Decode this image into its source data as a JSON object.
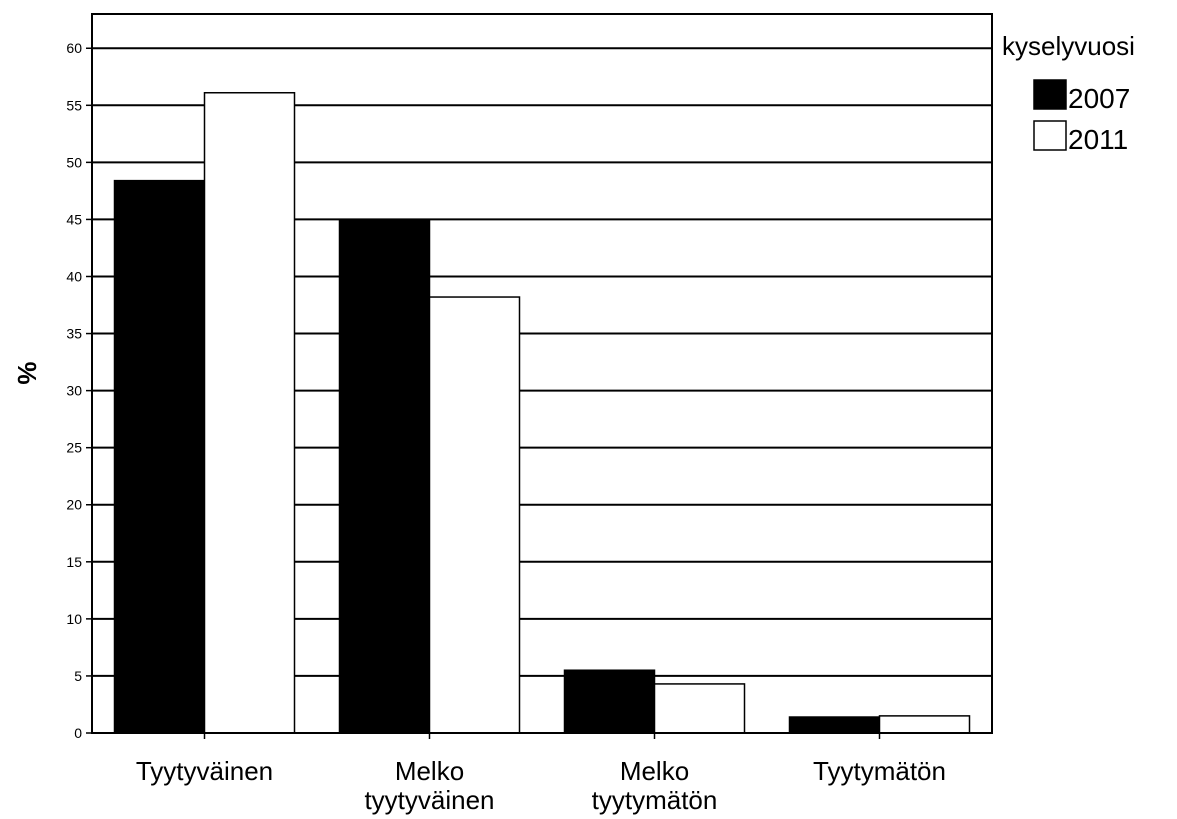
{
  "chart_data": {
    "type": "bar",
    "ylabel": "%",
    "xlabel": "",
    "ylim": [
      0,
      63
    ],
    "yticks": [
      0,
      5,
      10,
      15,
      20,
      25,
      30,
      35,
      40,
      45,
      50,
      55,
      60
    ],
    "grid": true,
    "legend_placement": "top-right, outside plot",
    "legend_title": "kyselyvuosi",
    "categories": [
      [
        "Tyytyväinen"
      ],
      [
        "Melko",
        "tyytyväinen"
      ],
      [
        "Melko",
        "tyytymätön"
      ],
      [
        "Tyytymätön"
      ]
    ],
    "series": [
      {
        "name": "2007",
        "color": "#000000",
        "values": [
          48.4,
          45.0,
          5.5,
          1.4
        ]
      },
      {
        "name": "2011",
        "color": "#ffffff",
        "values": [
          56.1,
          38.2,
          4.3,
          1.5
        ]
      }
    ]
  }
}
